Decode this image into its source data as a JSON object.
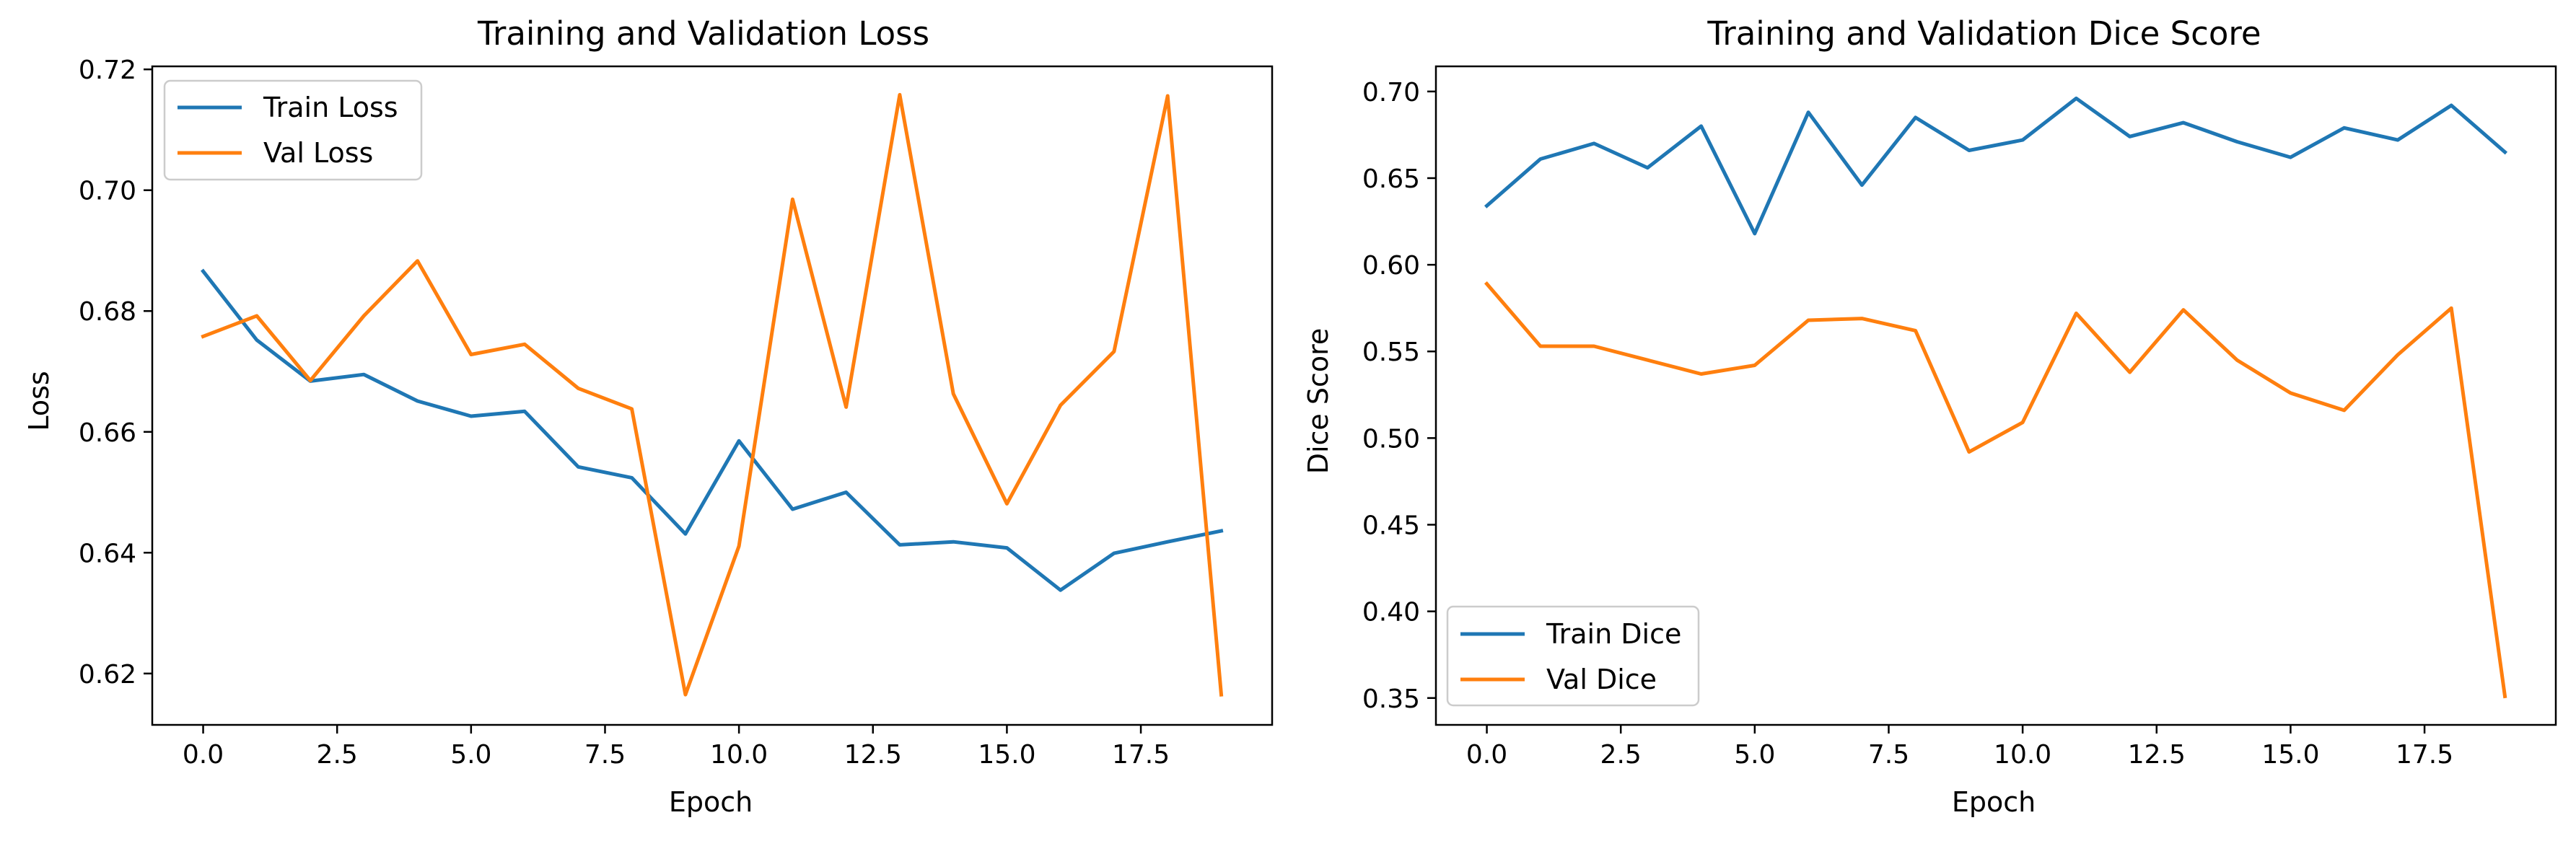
{
  "chart_data": [
    {
      "type": "line",
      "title": "Training and Validation Loss",
      "xlabel": "Epoch",
      "ylabel": "Loss",
      "xlim": [
        -0.95,
        19.95
      ],
      "ylim": [
        0.6115,
        0.7205
      ],
      "xticks": [
        0,
        2.5,
        5,
        7.5,
        10,
        12.5,
        15,
        17.5
      ],
      "xtick_labels": [
        "0.0",
        "2.5",
        "5.0",
        "7.5",
        "10.0",
        "12.5",
        "15.0",
        "17.5"
      ],
      "yticks": [
        0.62,
        0.64,
        0.66,
        0.68,
        0.7,
        0.72
      ],
      "ytick_labels": [
        "0.62",
        "0.64",
        "0.66",
        "0.68",
        "0.70",
        "0.72"
      ],
      "grid": false,
      "legend_position": "top-left",
      "x": [
        0,
        1,
        2,
        3,
        4,
        5,
        6,
        7,
        8,
        9,
        10,
        11,
        12,
        13,
        14,
        15,
        16,
        17,
        18,
        19
      ],
      "series": [
        {
          "name": "Train Loss",
          "color": "#1f77b4",
          "values": [
            0.6866,
            0.6752,
            0.6684,
            0.6695,
            0.6651,
            0.6626,
            0.6634,
            0.6542,
            0.6524,
            0.6431,
            0.6585,
            0.6472,
            0.65,
            0.6413,
            0.6418,
            0.6408,
            0.6338,
            0.6399,
            0.6418,
            0.6436
          ]
        },
        {
          "name": "Val Loss",
          "color": "#ff7f0e",
          "values": [
            0.6758,
            0.6792,
            0.6685,
            0.6792,
            0.6883,
            0.6728,
            0.6745,
            0.6672,
            0.6638,
            0.6165,
            0.6411,
            0.6985,
            0.6641,
            0.7158,
            0.6663,
            0.6481,
            0.6644,
            0.6733,
            0.7156,
            0.6165
          ]
        }
      ]
    },
    {
      "type": "line",
      "title": "Training and Validation Dice Score",
      "xlabel": "Epoch",
      "ylabel": "Dice Score",
      "xlim": [
        -0.95,
        19.95
      ],
      "ylim": [
        0.3345,
        0.7145
      ],
      "xticks": [
        0,
        2.5,
        5,
        7.5,
        10,
        12.5,
        15,
        17.5
      ],
      "xtick_labels": [
        "0.0",
        "2.5",
        "5.0",
        "7.5",
        "10.0",
        "12.5",
        "15.0",
        "17.5"
      ],
      "yticks": [
        0.35,
        0.4,
        0.45,
        0.5,
        0.55,
        0.6,
        0.65,
        0.7
      ],
      "ytick_labels": [
        "0.35",
        "0.40",
        "0.45",
        "0.50",
        "0.55",
        "0.60",
        "0.65",
        "0.70"
      ],
      "grid": false,
      "legend_position": "bottom-left",
      "x": [
        0,
        1,
        2,
        3,
        4,
        5,
        6,
        7,
        8,
        9,
        10,
        11,
        12,
        13,
        14,
        15,
        16,
        17,
        18,
        19
      ],
      "series": [
        {
          "name": "Train Dice",
          "color": "#1f77b4",
          "values": [
            0.634,
            0.661,
            0.67,
            0.656,
            0.68,
            0.618,
            0.688,
            0.646,
            0.685,
            0.666,
            0.672,
            0.696,
            0.674,
            0.682,
            0.671,
            0.662,
            0.679,
            0.672,
            0.692,
            0.665
          ]
        },
        {
          "name": "Val Dice",
          "color": "#ff7f0e",
          "values": [
            0.589,
            0.553,
            0.553,
            0.545,
            0.537,
            0.542,
            0.568,
            0.569,
            0.562,
            0.492,
            0.509,
            0.572,
            0.538,
            0.574,
            0.545,
            0.526,
            0.516,
            0.548,
            0.575,
            0.351
          ]
        }
      ]
    }
  ]
}
